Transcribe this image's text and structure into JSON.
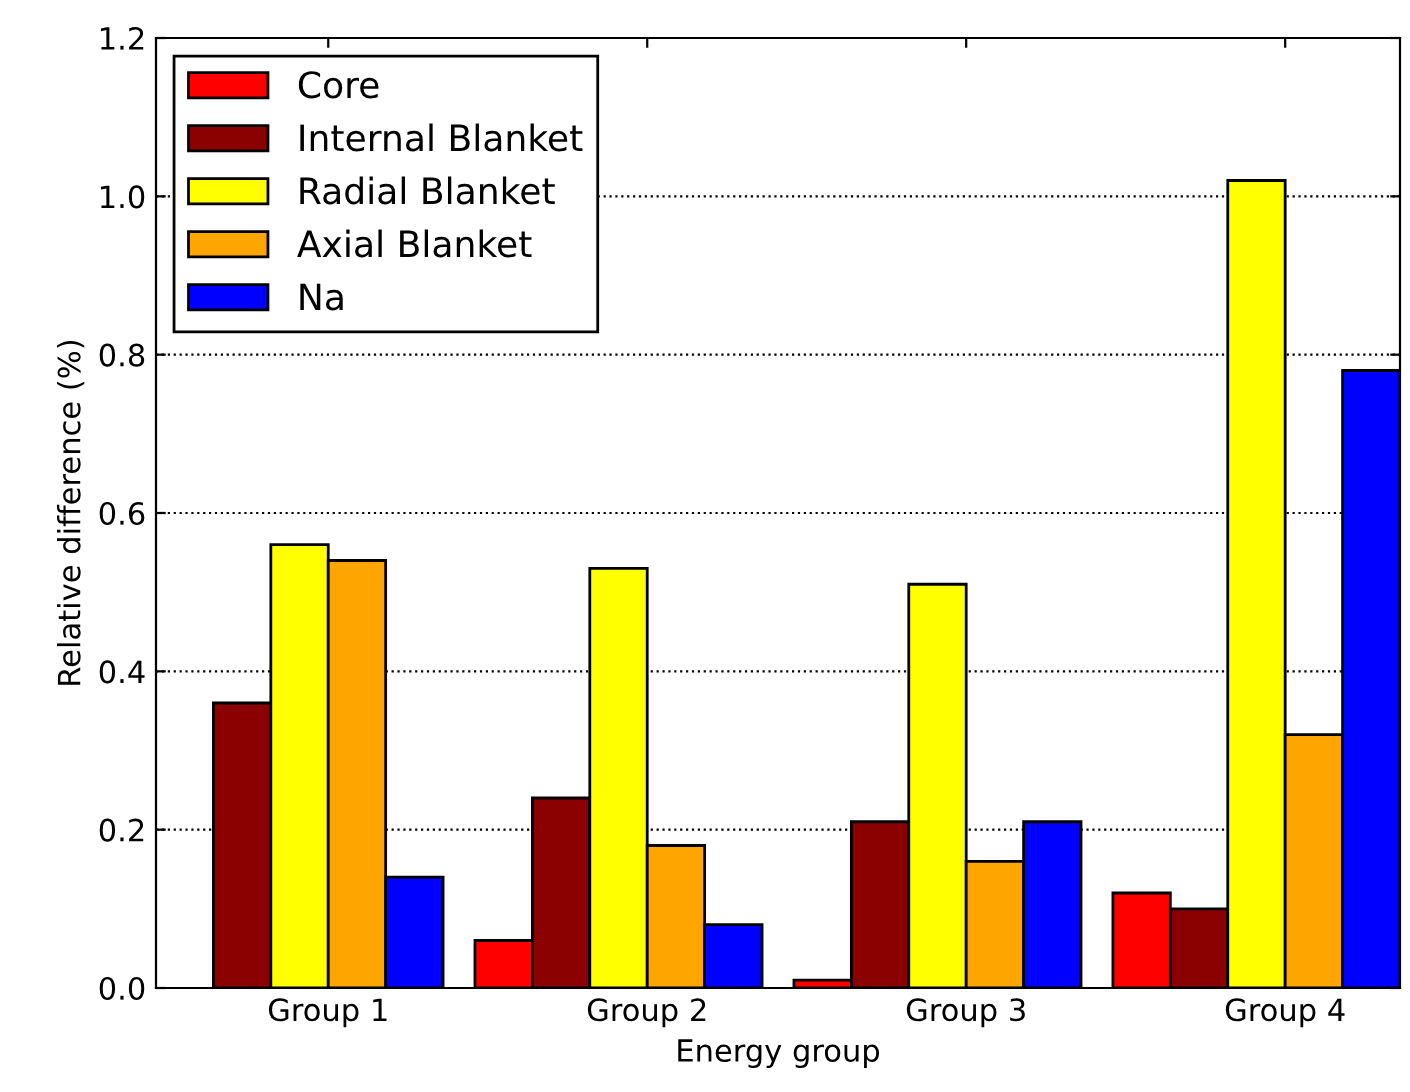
{
  "chart_data": {
    "type": "bar",
    "xlabel": "Energy group",
    "ylabel": "Relative difference (%)",
    "categories": [
      "Group 1",
      "Group 2",
      "Group 3",
      "Group 4"
    ],
    "series": [
      {
        "name": "Core",
        "color": "#ff0000",
        "values": [
          null,
          0.06,
          0.01,
          0.12
        ]
      },
      {
        "name": "Internal Blanket",
        "color": "#8b0000",
        "values": [
          0.36,
          0.24,
          0.21,
          0.1
        ]
      },
      {
        "name": "Radial Blanket",
        "color": "#ffff00",
        "values": [
          0.56,
          0.53,
          0.51,
          1.02
        ]
      },
      {
        "name": "Axial Blanket",
        "color": "#ffa500",
        "values": [
          0.54,
          0.18,
          0.16,
          0.32
        ]
      },
      {
        "name": "Na",
        "color": "#0000ff",
        "values": [
          0.14,
          0.08,
          0.21,
          0.78
        ]
      }
    ],
    "ylim": [
      0,
      1.2
    ],
    "yticks": [
      {
        "value": 0,
        "label": "0.0"
      },
      {
        "value": 0.2,
        "label": "0.2"
      },
      {
        "value": 0.4,
        "label": "0.4"
      },
      {
        "value": 0.6,
        "label": "0.6"
      },
      {
        "value": 0.8,
        "label": "0.8"
      },
      {
        "value": 1.0,
        "label": "1.0"
      },
      {
        "value": 1.2,
        "label": "1.2"
      }
    ],
    "grid": "y",
    "legend": "top left"
  }
}
